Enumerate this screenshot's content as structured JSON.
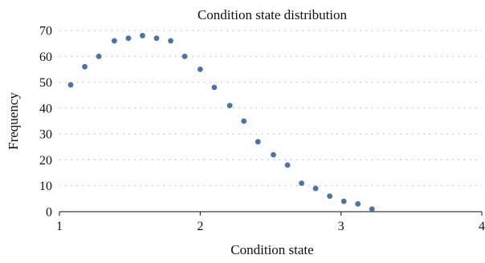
{
  "chart_data": {
    "type": "scatter",
    "title": "Condition state distribution",
    "xlabel": "Condition state",
    "ylabel": "Frequency",
    "xlim": [
      1,
      4
    ],
    "ylim": [
      0,
      70
    ],
    "xticks": [
      1,
      2,
      3,
      4
    ],
    "yticks": [
      0,
      10,
      20,
      30,
      40,
      50,
      60,
      70
    ],
    "grid": {
      "y_major": true,
      "x_major": false,
      "style": "dotted"
    },
    "legend": "none",
    "marker_color": "#4a72ad",
    "series": [
      {
        "x": [
          1.08,
          1.18,
          1.28,
          1.39,
          1.49,
          1.59,
          1.69,
          1.79,
          1.89,
          2.0,
          2.1,
          2.21,
          2.31,
          2.41,
          2.52,
          2.62,
          2.72,
          2.82,
          2.92,
          3.02,
          3.12,
          3.22
        ],
        "y": [
          49,
          56,
          60,
          66,
          67,
          68,
          67,
          66,
          60,
          55,
          48,
          41,
          35,
          27,
          22,
          18,
          11,
          9,
          6,
          4,
          3,
          1
        ]
      }
    ]
  }
}
